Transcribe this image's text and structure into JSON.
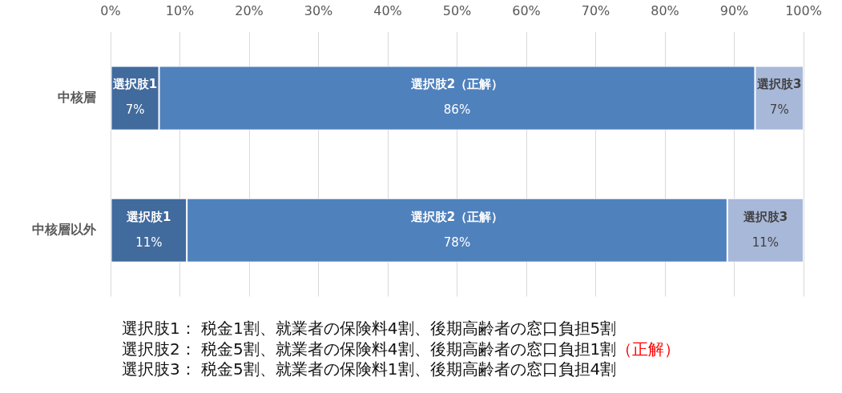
{
  "chart_data": {
    "type": "bar",
    "orientation": "horizontal",
    "stacked": true,
    "categories": [
      "中核層",
      "中核層以外"
    ],
    "series": [
      {
        "name": "選択肢1",
        "color": "#416a9d",
        "values": [
          7,
          11
        ],
        "value_labels": [
          "7%",
          "11%"
        ]
      },
      {
        "name": "選択肢2（正解）",
        "color": "#4f81bd",
        "values": [
          86,
          78
        ],
        "value_labels": [
          "86%",
          "78%"
        ]
      },
      {
        "name": "選択肢3",
        "color": "#a8b8d9",
        "values": [
          7,
          11
        ],
        "value_labels": [
          "7%",
          "11%"
        ]
      }
    ],
    "xlim": [
      0,
      100
    ],
    "xticks": [
      {
        "value": 0,
        "label": "0%"
      },
      {
        "value": 10,
        "label": "10%"
      },
      {
        "value": 20,
        "label": "20%"
      },
      {
        "value": 30,
        "label": "30%"
      },
      {
        "value": 40,
        "label": "40%"
      },
      {
        "value": 50,
        "label": "50%"
      },
      {
        "value": 60,
        "label": "60%"
      },
      {
        "value": 70,
        "label": "70%"
      },
      {
        "value": 80,
        "label": "80%"
      },
      {
        "value": 90,
        "label": "90%"
      },
      {
        "value": 100,
        "label": "100%"
      }
    ],
    "grid": "x",
    "legend": false,
    "annotations": [
      "選択肢1： 税金1割、就業者の保険料4割、後期高齢者の窓口負担5割",
      "選択肢2： 税金5割、就業者の保険料4割、後期高齢者の窓口負担1割",
      "（正解）",
      "選択肢3： 税金5割、就業者の保険料1割、後期高齢者の窓口負担4割"
    ]
  }
}
